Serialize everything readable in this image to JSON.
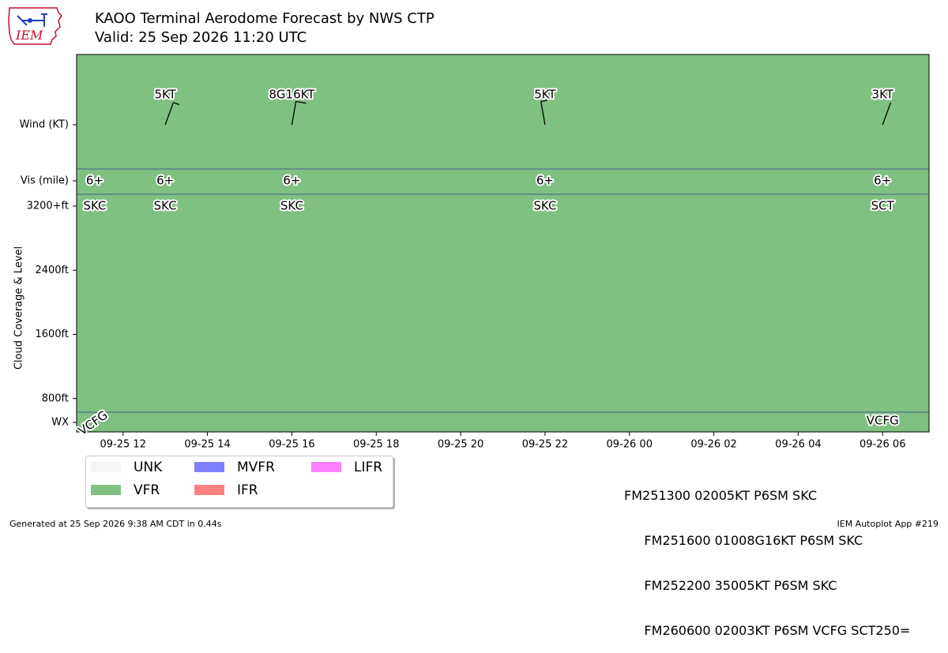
{
  "header": {
    "title": "KAOO Terminal Aerodome Forecast by NWS CTP",
    "subtitle": "Valid: 25 Sep 2026 11:20 UTC",
    "logo_text": "IEM"
  },
  "chart_data": {
    "type": "timeline",
    "x_ticks": [
      "09-25 12",
      "09-25 14",
      "09-25 16",
      "09-25 18",
      "09-25 20",
      "09-25 22",
      "09-26 00",
      "09-26 02",
      "09-26 04",
      "09-26 06"
    ],
    "x_range_hours": [
      -1.1,
      19.1
    ],
    "rows": {
      "wind_label": "Wind (KT)",
      "vis_label": "Vis (mile)",
      "cloud_label": "Cloud Coverage & Level",
      "wx_label": "WX",
      "cloud_ticks": [
        "3200+ft",
        "2400ft",
        "1600ft",
        "800ft"
      ],
      "cloud_tick_values": [
        3200,
        2400,
        1600,
        800
      ]
    },
    "background_category": "VFR",
    "wind": [
      {
        "hour": 1,
        "label": "5KT",
        "dir": 20,
        "speed": 5
      },
      {
        "hour": 4,
        "label": "8G16KT",
        "dir": 10,
        "speed": 8
      },
      {
        "hour": 10,
        "label": "5KT",
        "dir": 350,
        "speed": 5
      },
      {
        "hour": 18,
        "label": "3KT",
        "dir": 20,
        "speed": 3
      }
    ],
    "visibility": [
      {
        "hour": -0.67,
        "label": "6+"
      },
      {
        "hour": 1,
        "label": "6+"
      },
      {
        "hour": 4,
        "label": "6+"
      },
      {
        "hour": 10,
        "label": "6+"
      },
      {
        "hour": 18,
        "label": "6+"
      }
    ],
    "clouds": [
      {
        "hour": -0.67,
        "label": "SKC"
      },
      {
        "hour": 1,
        "label": "SKC"
      },
      {
        "hour": 4,
        "label": "SKC"
      },
      {
        "hour": 10,
        "label": "SKC"
      },
      {
        "hour": 18,
        "label": "SCT"
      }
    ],
    "weather": [
      {
        "hour": -0.67,
        "label": "VCFG",
        "rotated": true
      },
      {
        "hour": 18,
        "label": "VCFG",
        "rotated": false
      }
    ]
  },
  "legend": {
    "items": [
      {
        "label": "UNK",
        "color": "#f5f5f5"
      },
      {
        "label": "MVFR",
        "color": "#8080ff"
      },
      {
        "label": "LIFR",
        "color": "#ff80ff"
      },
      {
        "label": "VFR",
        "color": "#80c080"
      },
      {
        "label": "IFR",
        "color": "#ff8080"
      }
    ]
  },
  "raw_taf": [
    "FM251300 02005KT P6SM SKC",
    "     FM251600 01008G16KT P6SM SKC",
    "     FM252200 35005KT P6SM SKC",
    "     FM260600 02003KT P6SM VCFG SCT250="
  ],
  "footer": {
    "generated": "Generated at 25 Sep 2026 9:38 AM CDT in 0.44s",
    "app": "IEM Autoplot App #219"
  },
  "colors": {
    "vfr": "#80c080",
    "divider": "#2f3f8f",
    "logo_red": "#c8102e",
    "logo_blue": "#1f3fbf"
  }
}
